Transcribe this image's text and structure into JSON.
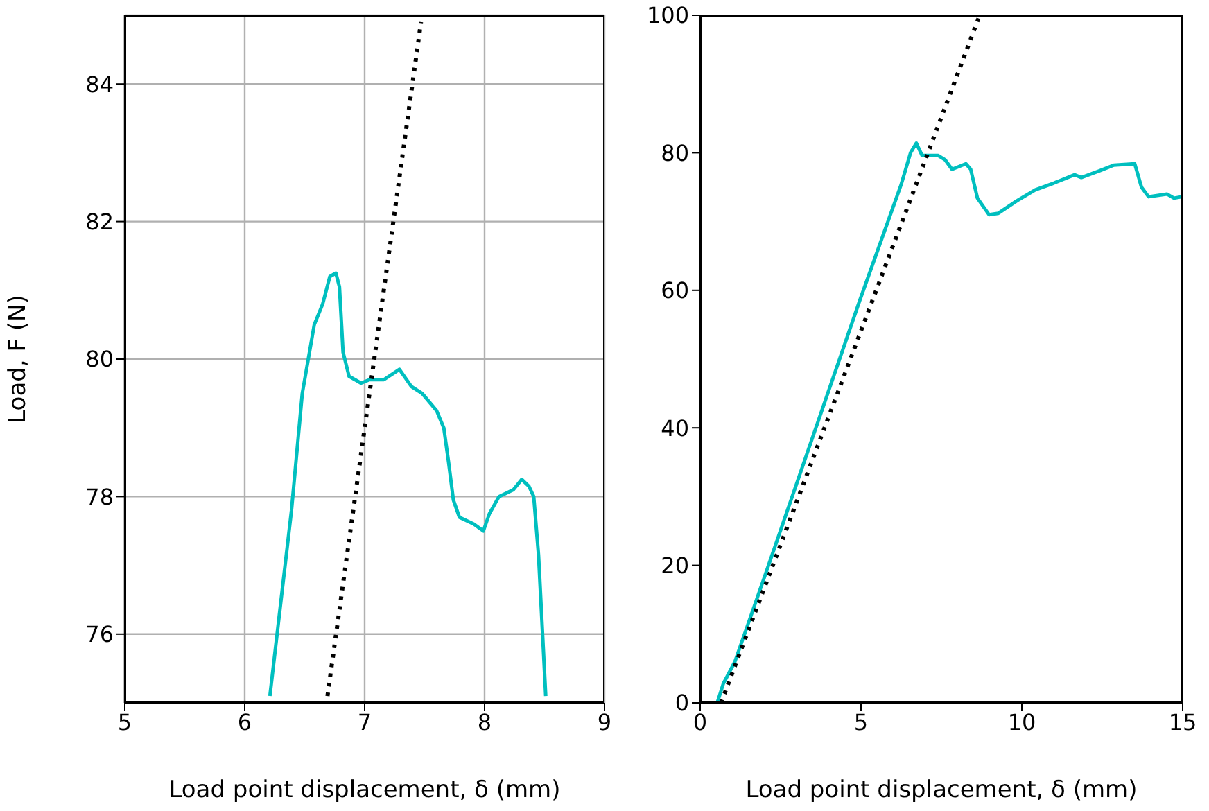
{
  "chart_data": [
    {
      "type": "line",
      "xlabel": "Load point displacement, δ (mm)",
      "ylabel": "Load, F (N)",
      "xlim": [
        5,
        9
      ],
      "xticks": [
        5,
        6,
        7,
        8,
        9
      ],
      "ylim": [
        75,
        85
      ],
      "yticks": [
        76,
        78,
        80,
        82,
        84
      ],
      "grid": true,
      "series": [
        {
          "color": "#00bfbf",
          "line_style": "solid",
          "x": [
            6.21,
            6.39,
            6.48,
            6.58,
            6.65,
            6.71,
            6.76,
            6.79,
            6.82,
            6.87,
            6.97,
            7.04,
            7.16,
            7.29,
            7.39,
            7.48,
            7.6,
            7.66,
            7.7,
            7.74,
            7.79,
            7.91,
            7.99,
            8.04,
            8.12,
            8.24,
            8.31,
            8.37,
            8.41,
            8.45,
            8.51
          ],
          "values": [
            75.1,
            77.8,
            79.5,
            80.5,
            80.8,
            81.2,
            81.25,
            81.05,
            80.1,
            79.75,
            79.65,
            79.7,
            79.7,
            79.85,
            79.6,
            79.5,
            79.25,
            79.0,
            78.5,
            77.95,
            77.7,
            77.6,
            77.5,
            77.75,
            78.0,
            78.1,
            78.25,
            78.15,
            78.0,
            77.15,
            75.1
          ]
        },
        {
          "color": "#000000",
          "line_style": "dotted",
          "x": [
            6.69,
            7.47
          ],
          "values": [
            75.1,
            84.9
          ]
        }
      ]
    },
    {
      "type": "line",
      "xlabel": "Load point displacement, δ (mm)",
      "xlim": [
        0,
        15
      ],
      "xticks": [
        0,
        5,
        10,
        15
      ],
      "ylim": [
        0,
        100
      ],
      "yticks": [
        0,
        20,
        40,
        60,
        80,
        100
      ],
      "grid": false,
      "series": [
        {
          "color": "#00bfbf",
          "line_style": "solid",
          "x": [
            0.53,
            0.72,
            1.08,
            1.94,
            4.96,
            6.25,
            6.54,
            6.72,
            6.9,
            7.4,
            7.61,
            7.83,
            8.26,
            8.41,
            8.62,
            8.98,
            9.27,
            9.84,
            10.42,
            11.0,
            11.64,
            11.85,
            12.43,
            12.86,
            13.51,
            13.72,
            13.94,
            14.51,
            14.73,
            14.97
          ],
          "values": [
            0,
            2.8,
            6,
            17.5,
            58.5,
            75.4,
            80,
            81.4,
            79.6,
            79.6,
            79,
            77.6,
            78.4,
            77.6,
            73.4,
            71,
            71.2,
            73,
            74.6,
            75.6,
            76.8,
            76.4,
            77.4,
            78.2,
            78.4,
            75,
            73.6,
            74,
            73.4,
            73.6
          ]
        },
        {
          "color": "#000000",
          "line_style": "dotted",
          "x": [
            0.65,
            8.69
          ],
          "values": [
            0,
            100
          ]
        }
      ]
    }
  ]
}
